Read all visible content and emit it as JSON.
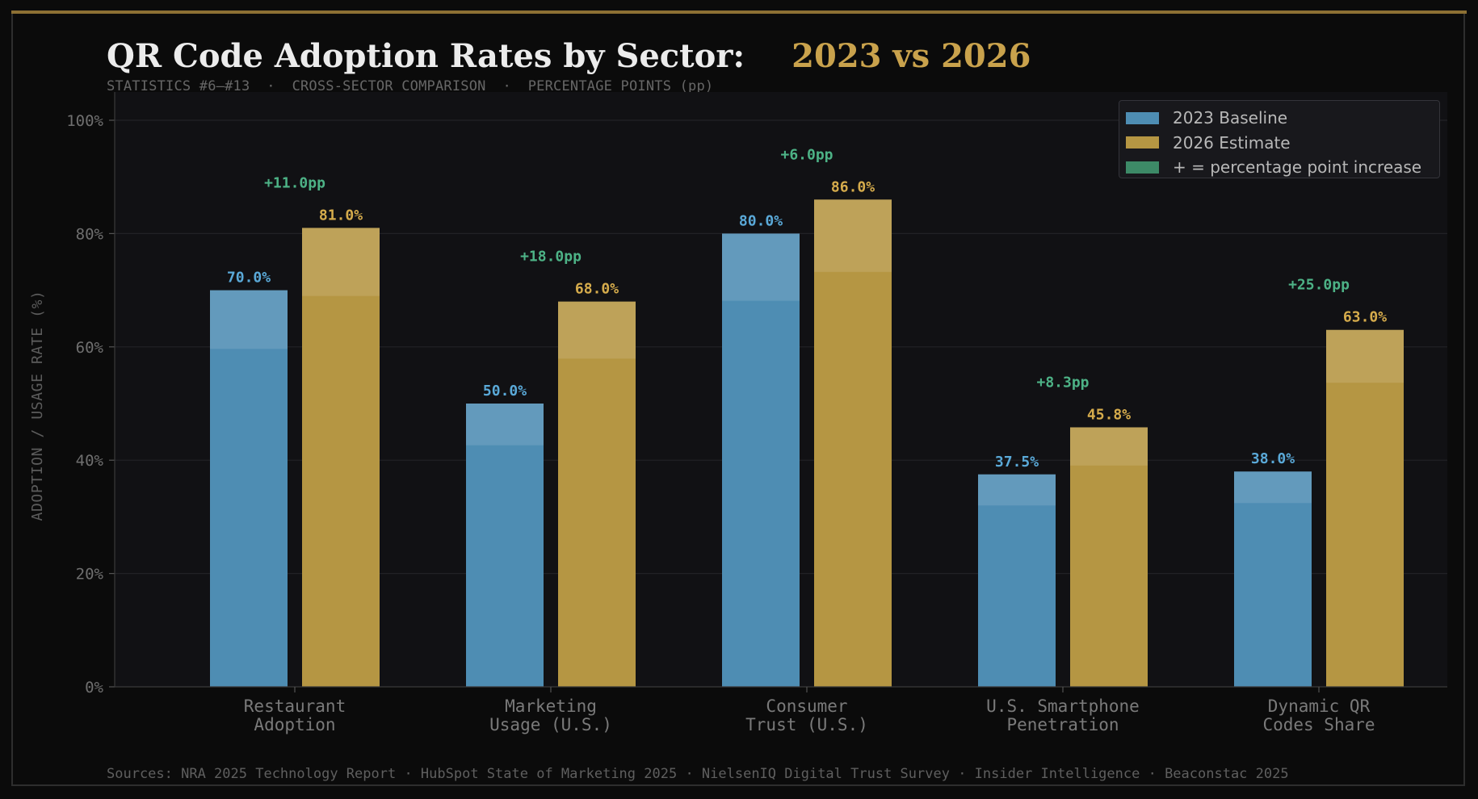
{
  "header": {
    "title": "QR Code Adoption Rates by Sector:",
    "title_accent": "2023 vs 2026",
    "subtitle": "STATISTICS #6–#13  ·  CROSS-SECTOR COMPARISON  ·  PERCENTAGE POINTS (pp)"
  },
  "legend": {
    "items": [
      {
        "label": "2023 Baseline",
        "color": "#4e8db3"
      },
      {
        "label": "2026 Estimate",
        "color": "#b59643"
      },
      {
        "label": "+ = percentage point increase",
        "color": "#3d8a67"
      }
    ]
  },
  "footer": {
    "sources": "Sources: NRA 2025 Technology Report · HubSpot State of Marketing 2025 · NielsenIQ Digital Trust Survey · Insider Intelligence · Beaconstac 2025"
  },
  "colors": {
    "baseline": "#4e8db3",
    "estimate": "#b59643",
    "increase": "#4db286",
    "baseline_label": "#5aa9d8",
    "estimate_label": "#d6ac4c",
    "background": "#0b0b0b",
    "plot_bg": "#111114"
  },
  "chart_data": {
    "type": "bar",
    "title": "QR Code Adoption Rates by Sector: 2023 vs 2026",
    "ylabel": "ADOPTION / USAGE RATE (%)",
    "xlabel": "",
    "ylim": [
      0,
      100
    ],
    "yticks": [
      "0%",
      "20%",
      "40%",
      "60%",
      "80%",
      "100%"
    ],
    "grid": true,
    "legend_position": "top-right",
    "categories": [
      [
        "Restaurant",
        "Adoption"
      ],
      [
        "Marketing",
        "Usage (U.S.)"
      ],
      [
        "Consumer",
        "Trust (U.S.)"
      ],
      [
        "U.S. Smartphone",
        "Penetration"
      ],
      [
        "Dynamic QR",
        "Codes Share"
      ]
    ],
    "series": [
      {
        "name": "2023 Baseline",
        "values": [
          70.0,
          50.0,
          80.0,
          37.5,
          38.0
        ],
        "labels": [
          "70.0%",
          "50.0%",
          "80.0%",
          "37.5%",
          "38.0%"
        ]
      },
      {
        "name": "2026 Estimate",
        "values": [
          81.0,
          68.0,
          86.0,
          45.8,
          63.0
        ],
        "labels": [
          "81.0%",
          "68.0%",
          "86.0%",
          "45.8%",
          "63.0%"
        ]
      }
    ],
    "annotations": [
      "+11.0pp",
      "+18.0pp",
      "+6.0pp",
      "+8.3pp",
      "+25.0pp"
    ]
  }
}
